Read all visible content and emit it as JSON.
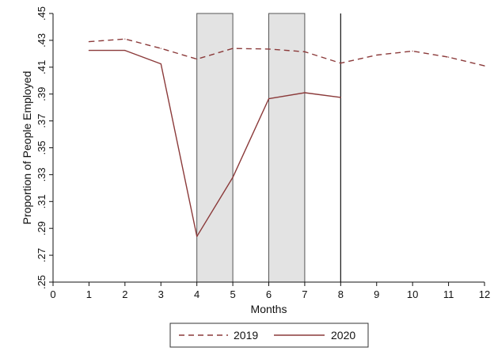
{
  "chart_data": {
    "type": "line",
    "xlabel": "Months",
    "ylabel": "Proportion of People Employed",
    "xlim": [
      0,
      12
    ],
    "ylim": [
      0.25,
      0.45
    ],
    "x_ticks": [
      0,
      1,
      2,
      3,
      4,
      5,
      6,
      7,
      8,
      9,
      10,
      11,
      12
    ],
    "x_tick_labels": [
      "0",
      "1",
      "2",
      "3",
      "4",
      "5",
      "6",
      "7",
      "8",
      "9",
      "10",
      "11",
      "12"
    ],
    "y_ticks": [
      0.25,
      0.27,
      0.29,
      0.31,
      0.33,
      0.35,
      0.37,
      0.39,
      0.41,
      0.43,
      0.45
    ],
    "y_tick_labels": [
      ".25",
      ".27",
      ".29",
      ".31",
      ".33",
      ".35",
      ".37",
      ".39",
      ".41",
      ".43",
      ".45"
    ],
    "shaded_bands": [
      [
        4,
        5
      ],
      [
        6,
        7
      ]
    ],
    "vertical_lines": [
      8
    ],
    "grid": false,
    "legend_position": "bottom",
    "series_color": "#8b3a3a",
    "band_color": "#e3e3e3",
    "series": [
      {
        "name": "2019",
        "style": "dashed",
        "x": [
          1,
          2,
          3,
          4,
          5,
          6,
          7,
          8,
          9,
          10,
          11,
          12
        ],
        "values": [
          0.429,
          0.431,
          0.424,
          0.416,
          0.424,
          0.4235,
          0.4215,
          0.413,
          0.419,
          0.422,
          0.4175,
          0.411
        ]
      },
      {
        "name": "2020",
        "style": "solid",
        "x": [
          1,
          2,
          3,
          4,
          5,
          6,
          7,
          8
        ],
        "values": [
          0.4225,
          0.4225,
          0.4125,
          0.284,
          0.328,
          0.3865,
          0.391,
          0.3875
        ]
      }
    ]
  }
}
